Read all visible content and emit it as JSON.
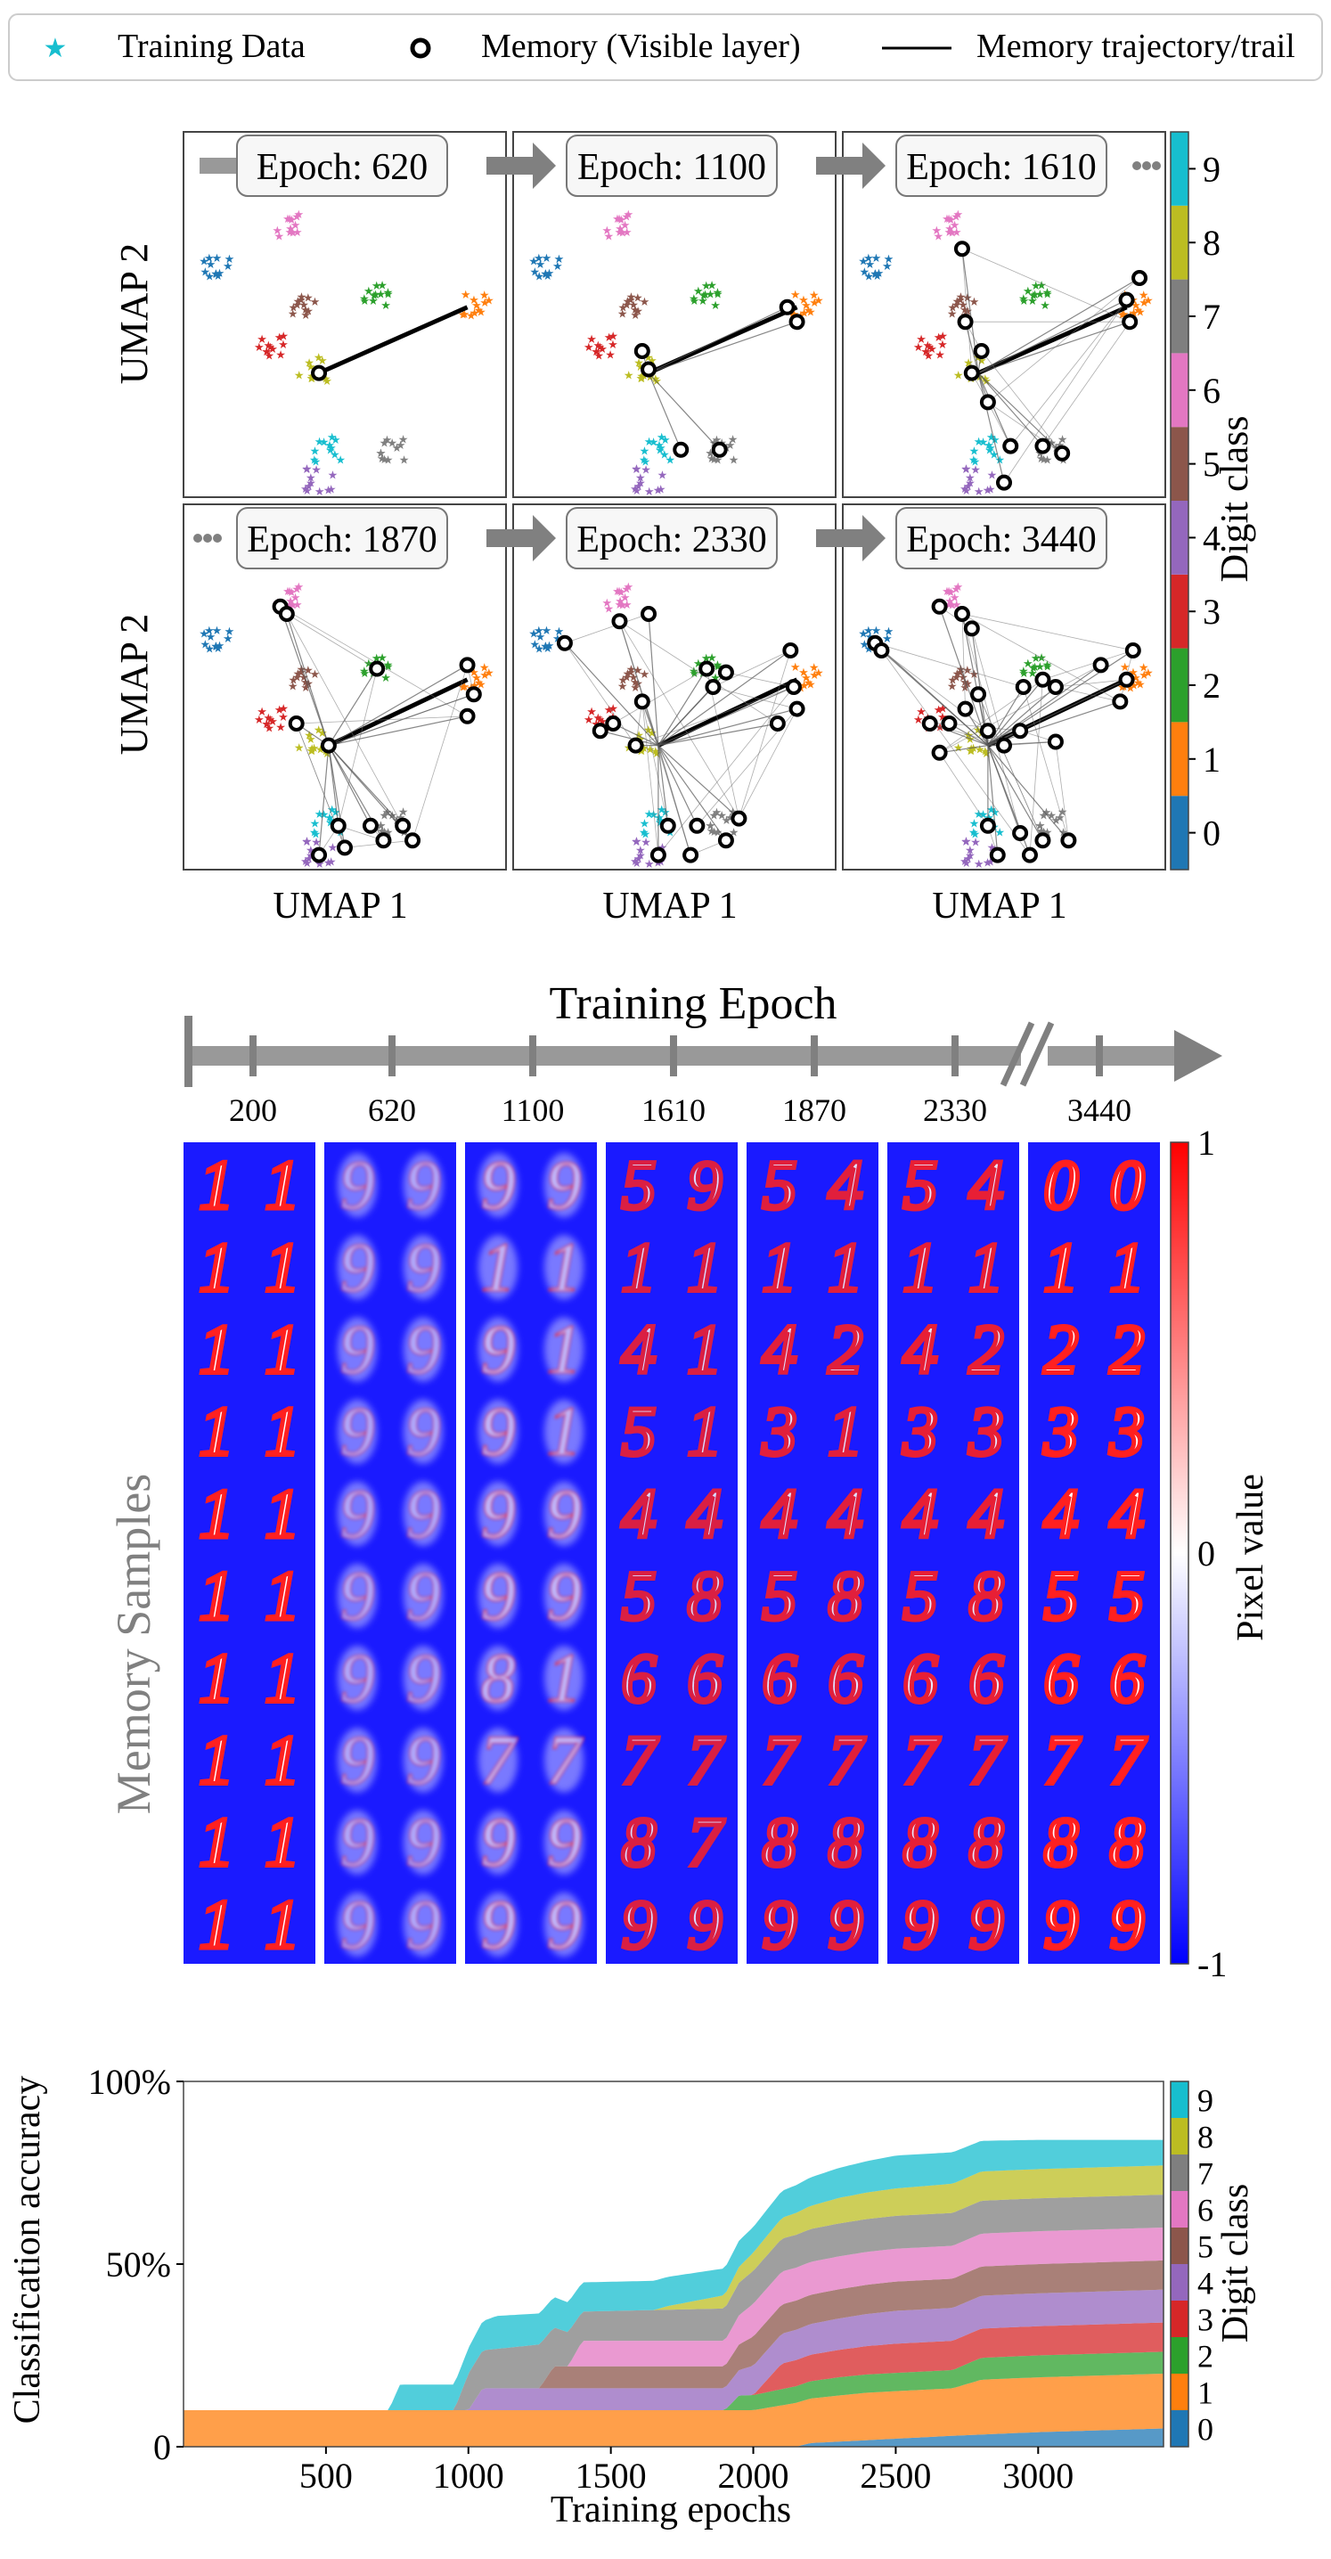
{
  "colors": {
    "digits": [
      "#1f77b4",
      "#ff7f0e",
      "#2ca02c",
      "#d62728",
      "#9467bd",
      "#8c564b",
      "#e377c2",
      "#7f7f7f",
      "#bcbd22",
      "#17becf"
    ],
    "accent_gray": "#808080",
    "memory_bg": "#1a1aff",
    "memory_stroke": "#ff2020"
  },
  "legend": {
    "training_data": "Training Data",
    "memory_visible": "Memory (Visible layer)",
    "memory_trail": "Memory trajectory/trail"
  },
  "umap": {
    "ylabel": "UMAP 2",
    "xlabel": "UMAP 1",
    "colorbar_label": "Digit class",
    "colorbar_ticks": [
      "0",
      "1",
      "2",
      "3",
      "4",
      "5",
      "6",
      "7",
      "8",
      "9"
    ],
    "panels": [
      {
        "epoch_label": "Epoch: 620",
        "arrow_in": false,
        "arrow_out": true,
        "dots_in": false,
        "dots_out": false,
        "spread": 0
      },
      {
        "epoch_label": "Epoch: 1100",
        "arrow_in": true,
        "arrow_out": true,
        "dots_in": false,
        "dots_out": false,
        "spread": 1
      },
      {
        "epoch_label": "Epoch: 1610",
        "arrow_in": true,
        "arrow_out": false,
        "dots_in": false,
        "dots_out": true,
        "spread": 2
      },
      {
        "epoch_label": "Epoch: 1870",
        "arrow_in": false,
        "arrow_out": true,
        "dots_in": true,
        "dots_out": false,
        "spread": 3
      },
      {
        "epoch_label": "Epoch: 2330",
        "arrow_in": true,
        "arrow_out": true,
        "dots_in": false,
        "dots_out": false,
        "spread": 4
      },
      {
        "epoch_label": "Epoch: 3440",
        "arrow_in": true,
        "arrow_out": false,
        "dots_in": false,
        "dots_out": false,
        "spread": 5
      }
    ]
  },
  "timeline": {
    "title": "Training Epoch",
    "ticks": [
      "200",
      "620",
      "1100",
      "1610",
      "1870",
      "2330",
      "3440"
    ]
  },
  "memory_samples": {
    "ylabel": "Memory Samples",
    "colorbar_label": "Pixel value",
    "colorbar_ticks": [
      "1",
      "0",
      "-1"
    ],
    "columns": [
      {
        "epoch": "200",
        "rows": [
          "1 1",
          "1 1",
          "1 1",
          "1 1",
          "1 1",
          "1 1",
          "1 1",
          "1 1",
          "1 1",
          "1 1"
        ],
        "clarity": 1.0
      },
      {
        "epoch": "620",
        "rows": [
          "9 9",
          "9 9",
          "9 9",
          "9 9",
          "9 9",
          "9 9",
          "9 9",
          "9 9",
          "9 9",
          "9 9"
        ],
        "clarity": 0.15
      },
      {
        "epoch": "1100",
        "rows": [
          "9 9",
          "1 1",
          "9 1",
          "9 1",
          "9 9",
          "9 9",
          "8 1",
          "7 7",
          "9 9",
          "9 9"
        ],
        "clarity": 0.35
      },
      {
        "epoch": "1610",
        "rows": [
          "5 9",
          "1 1",
          "4 1",
          "5 1",
          "4 4",
          "5 8",
          "6 6",
          "7 7",
          "8 7",
          "9 9"
        ],
        "clarity": 0.75
      },
      {
        "epoch": "1870",
        "rows": [
          "5 4",
          "1 1",
          "4 2",
          "3 1",
          "4 4",
          "5 8",
          "6 6",
          "7 7",
          "8 8",
          "9 9"
        ],
        "clarity": 0.8
      },
      {
        "epoch": "2330",
        "rows": [
          "5 4",
          "1 1",
          "4 2",
          "3 3",
          "4 4",
          "5 8",
          "6 6",
          "7 7",
          "8 8",
          "9 9"
        ],
        "clarity": 0.85
      },
      {
        "epoch": "3440",
        "rows": [
          "0 0",
          "1 1",
          "2 2",
          "3 3",
          "4 4",
          "5 5",
          "6 6",
          "7 7",
          "8 8",
          "9 9"
        ],
        "clarity": 1.0
      }
    ]
  },
  "chart_data": {
    "type": "area",
    "stacked": true,
    "xlabel": "Training epochs",
    "ylabel": "Classification accuracy",
    "xlim": [
      0,
      3440
    ],
    "ylim": [
      0,
      1.0
    ],
    "x_ticks": [
      "500",
      "1000",
      "1500",
      "2000",
      "2500",
      "3000"
    ],
    "y_ticks": [
      "0",
      "50%",
      "100%"
    ],
    "colorbar_label": "Digit class",
    "colorbar_ticks": [
      "0",
      "1",
      "2",
      "3",
      "4",
      "5",
      "6",
      "7",
      "8",
      "9"
    ],
    "series": [
      {
        "class": 0,
        "points": [
          [
            0,
            0
          ],
          [
            2150,
            0
          ],
          [
            2200,
            0.01
          ],
          [
            2700,
            0.03
          ],
          [
            3000,
            0.04
          ],
          [
            3440,
            0.05
          ]
        ]
      },
      {
        "class": 1,
        "points": [
          [
            0,
            0.1
          ],
          [
            1800,
            0.1
          ],
          [
            2000,
            0.1
          ],
          [
            2150,
            0.12
          ],
          [
            2400,
            0.13
          ],
          [
            2700,
            0.13
          ],
          [
            2800,
            0.15
          ],
          [
            3440,
            0.15
          ]
        ]
      },
      {
        "class": 2,
        "points": [
          [
            0,
            0
          ],
          [
            1900,
            0
          ],
          [
            1950,
            0.04
          ],
          [
            2300,
            0.05
          ],
          [
            2700,
            0.05
          ],
          [
            2800,
            0.06
          ],
          [
            3440,
            0.06
          ]
        ]
      },
      {
        "class": 3,
        "points": [
          [
            0,
            0
          ],
          [
            2000,
            0
          ],
          [
            2100,
            0.07
          ],
          [
            2500,
            0.08
          ],
          [
            3440,
            0.08
          ]
        ]
      },
      {
        "class": 4,
        "points": [
          [
            0,
            0
          ],
          [
            1000,
            0
          ],
          [
            1050,
            0.06
          ],
          [
            1900,
            0.06
          ],
          [
            2000,
            0.08
          ],
          [
            2500,
            0.09
          ],
          [
            3440,
            0.09
          ]
        ]
      },
      {
        "class": 5,
        "points": [
          [
            0,
            0
          ],
          [
            1250,
            0
          ],
          [
            1300,
            0.06
          ],
          [
            1900,
            0.06
          ],
          [
            2000,
            0.08
          ],
          [
            3440,
            0.08
          ]
        ]
      },
      {
        "class": 6,
        "points": [
          [
            0,
            0
          ],
          [
            1350,
            0
          ],
          [
            1400,
            0.07
          ],
          [
            1900,
            0.07
          ],
          [
            2000,
            0.09
          ],
          [
            3440,
            0.09
          ]
        ]
      },
      {
        "class": 7,
        "points": [
          [
            0,
            0
          ],
          [
            950,
            0
          ],
          [
            1000,
            0.1
          ],
          [
            1250,
            0.12
          ],
          [
            1400,
            0.08
          ],
          [
            2000,
            0.09
          ],
          [
            3440,
            0.09
          ]
        ]
      },
      {
        "class": 8,
        "points": [
          [
            0,
            0
          ],
          [
            1650,
            0
          ],
          [
            1700,
            0.01
          ],
          [
            2000,
            0.05
          ],
          [
            2300,
            0.07
          ],
          [
            2700,
            0.08
          ],
          [
            3440,
            0.08
          ]
        ]
      },
      {
        "class": 9,
        "points": [
          [
            0,
            0
          ],
          [
            720,
            0
          ],
          [
            760,
            0.07
          ],
          [
            1000,
            0.07
          ],
          [
            1100,
            0.09
          ],
          [
            1400,
            0.08
          ],
          [
            1700,
            0.08
          ],
          [
            2000,
            0.07
          ],
          [
            2500,
            0.09
          ],
          [
            3000,
            0.08
          ],
          [
            3440,
            0.07
          ]
        ]
      }
    ]
  }
}
